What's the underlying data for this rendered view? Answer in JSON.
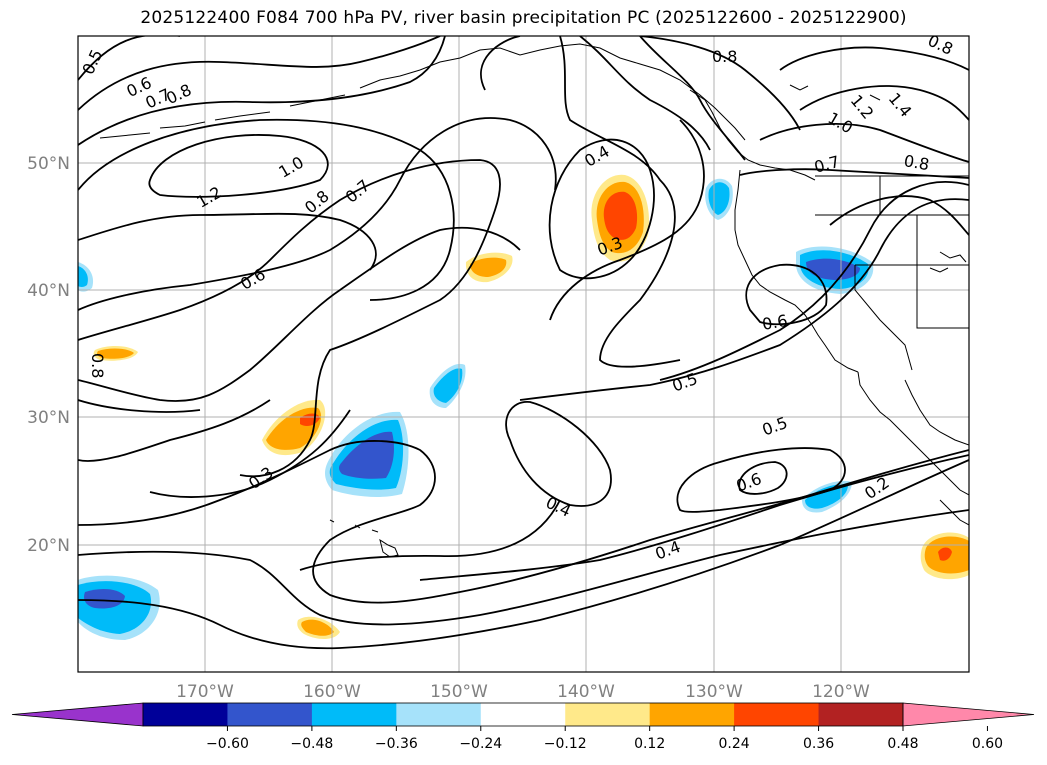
{
  "title": "2025122400 F084 700 hPa PV, river basin precipitation PC (2025122600 - 2025122900)",
  "map": {
    "lon_range": [
      -180,
      -110
    ],
    "lat_range": [
      10,
      60
    ],
    "lat_labels": [
      "50°N",
      "40°N",
      "30°N",
      "20°N"
    ],
    "lon_labels": [
      "170°W",
      "160°W",
      "150°W",
      "140°W",
      "130°W",
      "120°W"
    ]
  },
  "contour_labels": [
    "0.5",
    "0.6",
    "0.7",
    "0.8",
    "1.0",
    "1.2",
    "0.8",
    "0.7",
    "0.6",
    "0.8",
    "0.3",
    "0.4",
    "0.3",
    "0.8",
    "0.8",
    "1.0",
    "1.2",
    "1.4",
    "0.8",
    "0.7",
    "0.6",
    "0.5",
    "0.5",
    "0.6",
    "0.4",
    "0.4",
    "0.2"
  ],
  "colorbar": {
    "ticks": [
      "−0.60",
      "−0.48",
      "−0.36",
      "−0.24",
      "−0.12",
      "0.12",
      "0.24",
      "0.36",
      "0.48",
      "0.60"
    ],
    "colors": [
      "#9933cc",
      "#000099",
      "#3355cc",
      "#00bbf9",
      "#a6e2fa",
      "#ffffff",
      "#ffe98a",
      "#ffa500",
      "#ff4500",
      "#b22222",
      "#ff88aa"
    ]
  },
  "colors": {
    "positive_light": "#ffe98a",
    "positive_mid": "#ffa500",
    "positive_strong": "#ff4500",
    "negative_light": "#a6e2fa",
    "negative_mid": "#00bbf9",
    "negative_strong": "#3355cc",
    "grid": "#b0b0b0",
    "contour": "#000000"
  }
}
